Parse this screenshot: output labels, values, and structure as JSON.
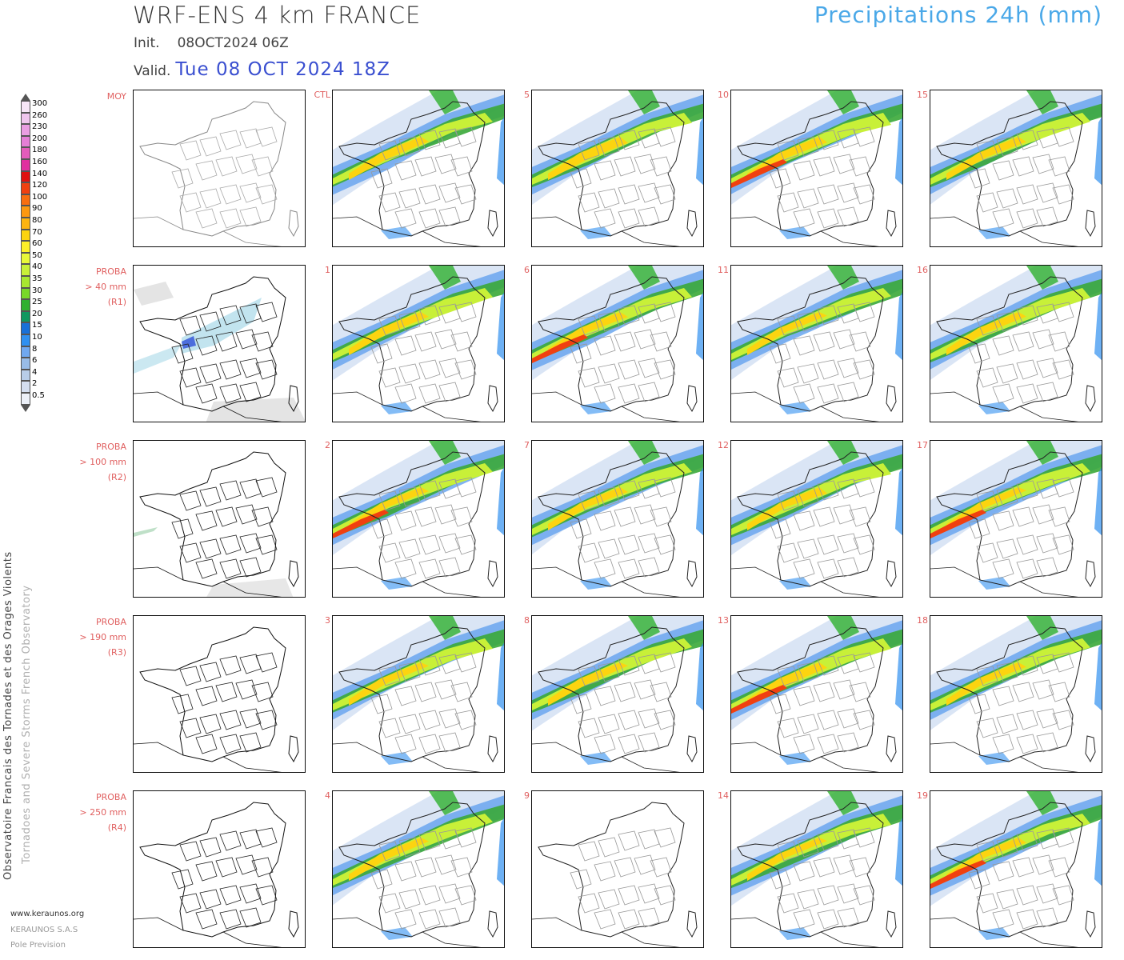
{
  "header": {
    "model_title": "WRF-ENS 4 km FRANCE",
    "parameter_title": "Precipitations 24h (mm)",
    "init_label": "Init.",
    "init_value": "08OCT2024 06Z",
    "valid_label": "Valid.",
    "valid_value": "Tue 08 OCT 2024 18Z"
  },
  "legend": {
    "levels": [
      "300",
      "260",
      "230",
      "200",
      "180",
      "160",
      "140",
      "120",
      "100",
      "90",
      "80",
      "70",
      "60",
      "50",
      "40",
      "35",
      "30",
      "25",
      "20",
      "15",
      "10",
      "8",
      "6",
      "4",
      "2",
      "0.5"
    ],
    "colors": [
      "#f7e6f7",
      "#f0c6ee",
      "#ea9ee2",
      "#e47fd6",
      "#e35cbb",
      "#e0309f",
      "#e01010",
      "#f04010",
      "#f86e10",
      "#fc9810",
      "#fcb410",
      "#fcd410",
      "#fcf028",
      "#e8f838",
      "#c8f038",
      "#a8e830",
      "#78d828",
      "#30b030",
      "#109860",
      "#1870d8",
      "#3090f0",
      "#70a8f0",
      "#98bce8",
      "#b8cde8",
      "#d4def0",
      "#ecf0f8"
    ]
  },
  "side_text": {
    "french": "Observatoire Francais des Tornades et des Orages Violents",
    "english": "Tornadoes and Severe Storms French Observatory"
  },
  "footer": {
    "website": "www.keraunos.org",
    "company": "KERAUNOS S.A.S",
    "department": "Pole Prevision"
  },
  "rows": [
    {
      "label_lines": [
        "MOY",
        "",
        ""
      ],
      "members": [
        "CTL",
        "5",
        "10",
        "15"
      ]
    },
    {
      "label_lines": [
        "PROBA",
        "> 40 mm",
        "(R1)"
      ],
      "members": [
        "1",
        "6",
        "11",
        "16"
      ]
    },
    {
      "label_lines": [
        "PROBA",
        "> 100 mm",
        "(R2)"
      ],
      "members": [
        "2",
        "7",
        "12",
        "17"
      ]
    },
    {
      "label_lines": [
        "PROBA",
        "> 190 mm",
        "(R3)"
      ],
      "members": [
        "3",
        "8",
        "13",
        "18"
      ]
    },
    {
      "label_lines": [
        "PROBA",
        "> 250 mm",
        "(R4)"
      ],
      "members": [
        "4",
        "9",
        "14",
        "19"
      ]
    }
  ]
}
